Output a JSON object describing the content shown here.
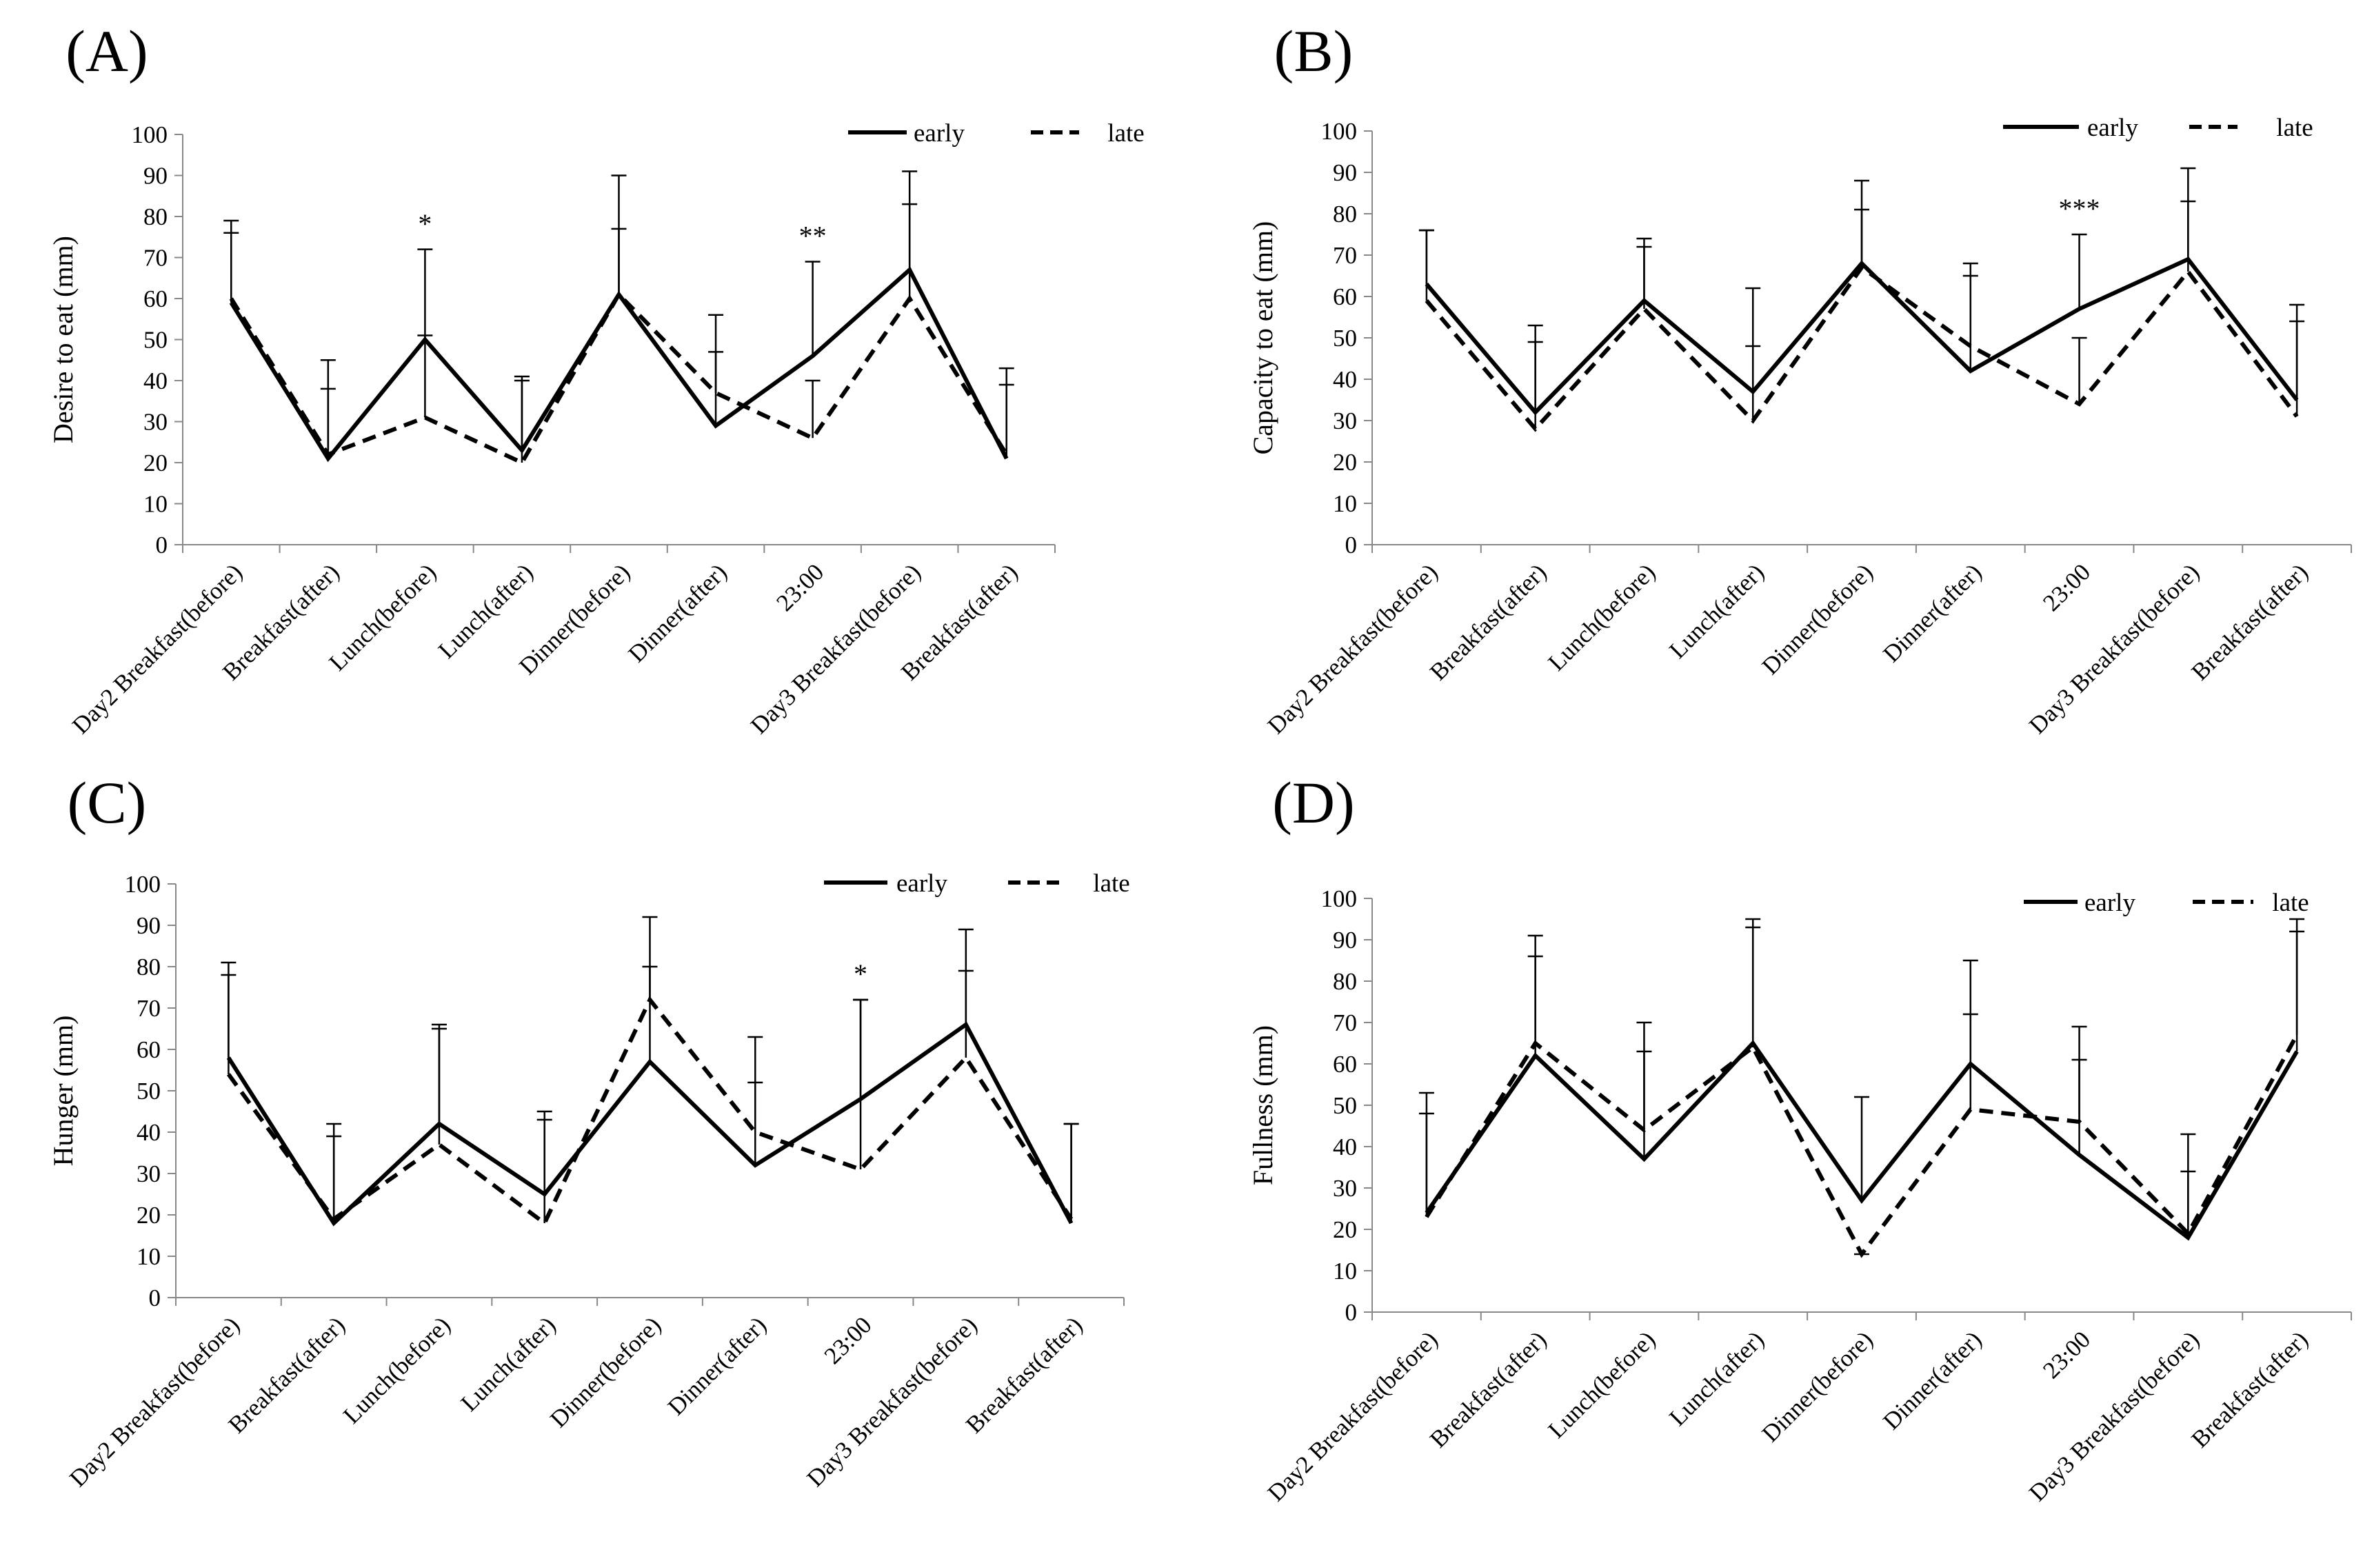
{
  "figure": {
    "legend_labels": [
      "early",
      "late"
    ]
  },
  "chart_data": [
    {
      "type": "line",
      "panel_label": "(A)",
      "title": "",
      "xlabel": "",
      "ylabel": "Desire to eat (mm)",
      "ylim": [
        0,
        100
      ],
      "yticks": [
        0,
        10,
        20,
        30,
        40,
        50,
        60,
        70,
        80,
        90,
        100
      ],
      "categories": [
        "Day2 Breakfast(before)",
        "Breakfast(after)",
        "Lunch(before)",
        "Lunch(after)",
        "Dinner(before)",
        "Dinner(after)",
        "23:00",
        "Day3 Breakfast(before)",
        "Breakfast(after)"
      ],
      "series": [
        {
          "name": "early",
          "style": "solid",
          "values": [
            59,
            21,
            50,
            23,
            61,
            29,
            46,
            67,
            21
          ],
          "error_tops": [
            79,
            45,
            72,
            41,
            90,
            56,
            69,
            91,
            43
          ]
        },
        {
          "name": "late",
          "style": "dashed",
          "values": [
            60,
            22,
            31,
            20,
            61,
            37,
            26,
            60,
            22
          ],
          "error_tops": [
            76,
            38,
            51,
            40,
            77,
            47,
            40,
            83,
            39
          ]
        }
      ],
      "annotations": [
        {
          "category_index": 2,
          "text": "*",
          "y": 76
        },
        {
          "category_index": 6,
          "text": "**",
          "y": 73
        }
      ]
    },
    {
      "type": "line",
      "panel_label": "(B)",
      "title": "",
      "xlabel": "",
      "ylabel": "Capacity to eat (mm)",
      "ylim": [
        0,
        100
      ],
      "yticks": [
        0,
        10,
        20,
        30,
        40,
        50,
        60,
        70,
        80,
        90,
        100
      ],
      "categories": [
        "Day2 Breakfast(before)",
        "Breakfast(after)",
        "Lunch(before)",
        "Lunch(after)",
        "Dinner(before)",
        "Dinner(after)",
        "23:00",
        "Day3 Breakfast(before)",
        "Breakfast(after)"
      ],
      "series": [
        {
          "name": "early",
          "style": "solid",
          "values": [
            63,
            32,
            59,
            37,
            68,
            42,
            57,
            69,
            35
          ],
          "error_tops": [
            76,
            53,
            74,
            62,
            88,
            68,
            75,
            91,
            58
          ]
        },
        {
          "name": "late",
          "style": "dashed",
          "values": [
            59,
            28,
            57,
            30,
            67,
            48,
            34,
            66,
            31
          ],
          "error_tops": [
            76,
            49,
            72,
            48,
            81,
            65,
            50,
            83,
            54
          ]
        }
      ],
      "annotations": [
        {
          "category_index": 6,
          "text": "***",
          "y": 79
        }
      ]
    },
    {
      "type": "line",
      "panel_label": "(C)",
      "title": "",
      "xlabel": "",
      "ylabel": "Hunger (mm)",
      "ylim": [
        0,
        100
      ],
      "yticks": [
        0,
        10,
        20,
        30,
        40,
        50,
        60,
        70,
        80,
        90,
        100
      ],
      "categories": [
        "Day2 Breakfast(before)",
        "Breakfast(after)",
        "Lunch(before)",
        "Lunch(after)",
        "Dinner(before)",
        "Dinner(after)",
        "23:00",
        "Day3 Breakfast(before)",
        "Breakfast(after)"
      ],
      "series": [
        {
          "name": "early",
          "style": "solid",
          "values": [
            58,
            18,
            42,
            25,
            57,
            32,
            48,
            66,
            18
          ],
          "error_tops": [
            81,
            42,
            66,
            45,
            92,
            63,
            72,
            89,
            42
          ]
        },
        {
          "name": "late",
          "style": "dashed",
          "values": [
            54,
            19,
            37,
            18,
            72,
            40,
            31,
            58,
            19
          ],
          "error_tops": [
            78,
            39,
            65,
            43,
            80,
            52,
            72,
            79,
            42
          ]
        }
      ],
      "annotations": [
        {
          "category_index": 6,
          "text": "*",
          "y": 76
        }
      ]
    },
    {
      "type": "line",
      "panel_label": "(D)",
      "title": "",
      "xlabel": "",
      "ylabel": "Fullness (mm)",
      "ylim": [
        0,
        100
      ],
      "yticks": [
        0,
        10,
        20,
        30,
        40,
        50,
        60,
        70,
        80,
        90,
        100
      ],
      "categories": [
        "Day2 Breakfast(before)",
        "Breakfast(after)",
        "Lunch(before)",
        "Lunch(after)",
        "Dinner(before)",
        "Dinner(after)",
        "23:00",
        "Day3 Breakfast(before)",
        "Breakfast(after)"
      ],
      "series": [
        {
          "name": "early",
          "style": "solid",
          "values": [
            24,
            62,
            37,
            65,
            27,
            60,
            38,
            18,
            63
          ],
          "error_tops": [
            53,
            91,
            70,
            95,
            52,
            85,
            69,
            43,
            95
          ]
        },
        {
          "name": "late",
          "style": "dashed",
          "values": [
            23,
            65,
            44,
            64,
            14,
            49,
            46,
            19,
            67
          ],
          "error_tops": [
            48,
            86,
            63,
            93,
            14,
            72,
            61,
            34,
            92
          ]
        }
      ],
      "annotations": []
    }
  ]
}
